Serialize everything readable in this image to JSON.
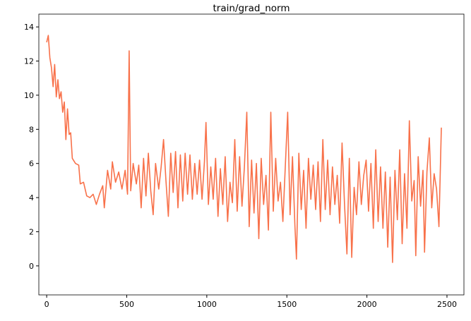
{
  "chart_data": {
    "type": "line",
    "title": "train/grad_norm",
    "x": [
      0,
      10,
      20,
      30,
      40,
      50,
      60,
      70,
      80,
      90,
      100,
      110,
      120,
      130,
      140,
      150,
      160,
      180,
      200,
      210,
      230,
      250,
      270,
      290,
      310,
      330,
      350,
      360,
      380,
      400,
      410,
      430,
      450,
      470,
      490,
      505,
      515,
      525,
      540,
      560,
      575,
      590,
      605,
      620,
      635,
      650,
      665,
      680,
      700,
      715,
      730,
      745,
      760,
      775,
      790,
      805,
      820,
      835,
      850,
      865,
      880,
      895,
      910,
      925,
      940,
      955,
      970,
      985,
      995,
      1010,
      1025,
      1040,
      1055,
      1070,
      1085,
      1100,
      1115,
      1130,
      1145,
      1160,
      1175,
      1190,
      1205,
      1220,
      1235,
      1250,
      1265,
      1280,
      1295,
      1310,
      1325,
      1340,
      1355,
      1370,
      1385,
      1400,
      1415,
      1430,
      1445,
      1460,
      1475,
      1490,
      1505,
      1520,
      1535,
      1550,
      1560,
      1575,
      1590,
      1605,
      1620,
      1635,
      1650,
      1665,
      1680,
      1695,
      1710,
      1725,
      1740,
      1755,
      1770,
      1785,
      1800,
      1815,
      1830,
      1845,
      1860,
      1875,
      1890,
      1905,
      1920,
      1935,
      1950,
      1965,
      1980,
      1995,
      2010,
      2025,
      2040,
      2055,
      2070,
      2085,
      2100,
      2115,
      2130,
      2145,
      2160,
      2175,
      2190,
      2205,
      2220,
      2235,
      2250,
      2265,
      2280,
      2295,
      2305,
      2320,
      2335,
      2350,
      2360,
      2375,
      2390,
      2405,
      2420,
      2435,
      2450,
      2465
    ],
    "series": [
      {
        "color": "#f8714a",
        "values": [
          13.1,
          13.5,
          12.2,
          11.6,
          10.5,
          11.8,
          9.9,
          10.9,
          9.8,
          10.2,
          9.0,
          9.6,
          7.4,
          9.2,
          7.7,
          7.8,
          6.3,
          6.0,
          5.9,
          4.8,
          4.9,
          4.1,
          4.0,
          4.2,
          3.6,
          4.2,
          4.7,
          3.4,
          5.6,
          4.5,
          6.1,
          4.9,
          5.5,
          4.5,
          5.6,
          4.2,
          12.6,
          4.4,
          6.0,
          4.8,
          5.9,
          3.4,
          6.3,
          4.1,
          6.6,
          4.4,
          3.0,
          6.0,
          4.5,
          5.8,
          7.4,
          5.0,
          2.9,
          6.6,
          4.3,
          6.7,
          3.4,
          6.5,
          3.8,
          6.6,
          4.2,
          6.5,
          3.9,
          6.0,
          4.2,
          6.2,
          3.9,
          6.1,
          8.4,
          3.6,
          5.8,
          3.9,
          6.3,
          2.9,
          5.7,
          3.6,
          6.4,
          2.6,
          4.9,
          3.7,
          7.4,
          3.2,
          6.4,
          3.5,
          5.8,
          9.0,
          2.3,
          6.2,
          3.1,
          6.0,
          1.6,
          6.3,
          3.6,
          5.3,
          2.1,
          9.0,
          3.2,
          6.3,
          3.8,
          4.9,
          2.6,
          5.8,
          9.0,
          3.0,
          6.4,
          2.4,
          0.4,
          6.6,
          3.3,
          5.6,
          2.2,
          6.3,
          3.9,
          5.9,
          3.3,
          6.1,
          2.6,
          7.4,
          3.3,
          6.2,
          3.0,
          5.8,
          3.6,
          5.3,
          2.5,
          7.2,
          3.6,
          0.7,
          6.3,
          0.5,
          4.6,
          3.0,
          6.1,
          3.6,
          5.3,
          6.2,
          3.2,
          6.0,
          2.2,
          6.8,
          2.6,
          5.8,
          2.2,
          5.5,
          1.1,
          5.2,
          0.2,
          5.6,
          2.7,
          6.8,
          1.3,
          5.4,
          2.2,
          8.5,
          3.8,
          5.0,
          0.6,
          6.4,
          3.5,
          5.6,
          0.8,
          5.5,
          7.5,
          3.4,
          5.4,
          4.5,
          2.3,
          8.1
        ]
      }
    ],
    "xlim": [
      -49,
      2606
    ],
    "xticks": [
      0,
      500,
      1000,
      1500,
      2000,
      2500
    ],
    "ylim": [
      -1.7,
      14.75
    ],
    "yticks": [
      0,
      2,
      4,
      6,
      8,
      10,
      12,
      14
    ],
    "grid": false
  }
}
